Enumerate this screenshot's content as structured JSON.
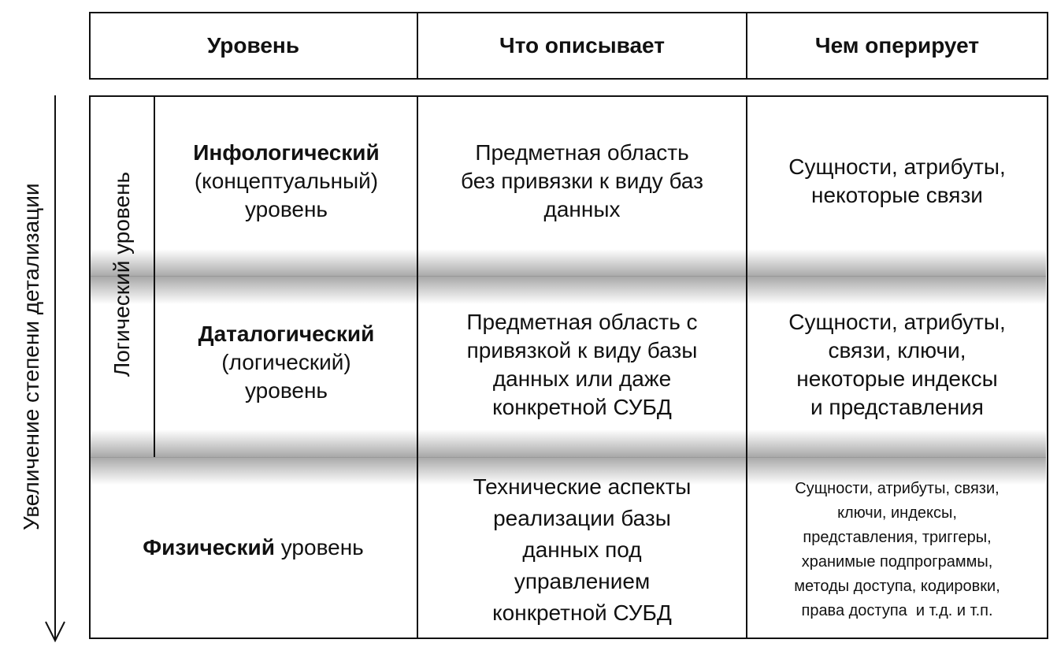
{
  "header": {
    "col1": "Уровень",
    "col2": "Что описывает",
    "col3": "Чем оперирует"
  },
  "side_arrow_label": "Увеличение степени детализации",
  "logical_group_label": "Логический уровень",
  "rows": [
    {
      "level_bold": "Инфологический",
      "level_rest": [
        "(концептуальный)",
        "уровень"
      ],
      "describes": [
        "Предметная область",
        "без привязки к виду баз",
        "данных"
      ],
      "operates": [
        "Сущности, атрибуты,",
        "некоторые связи"
      ]
    },
    {
      "level_bold": "Даталогический",
      "level_rest": [
        "(логический)",
        "уровень"
      ],
      "describes": [
        "Предметная область с",
        "привязкой к виду базы",
        "данных или даже",
        "конкретной СУБД"
      ],
      "operates": [
        "Сущности, атрибуты,",
        "связи, ключи,",
        "некоторые индексы",
        "и представления"
      ]
    },
    {
      "level_bold": "Физический",
      "level_rest": [
        " уровень"
      ],
      "describes": [
        "Технические аспекты",
        "реализации базы",
        "данных под",
        "управлением",
        "конкретной СУБД"
      ],
      "operates": [
        "Сущности, атрибуты, связи,",
        "ключи, индексы,",
        "представления, триггеры,",
        "хранимые подпрограммы,",
        "методы доступа, кодировки,",
        "права доступа  и т.д. и т.п."
      ]
    }
  ]
}
